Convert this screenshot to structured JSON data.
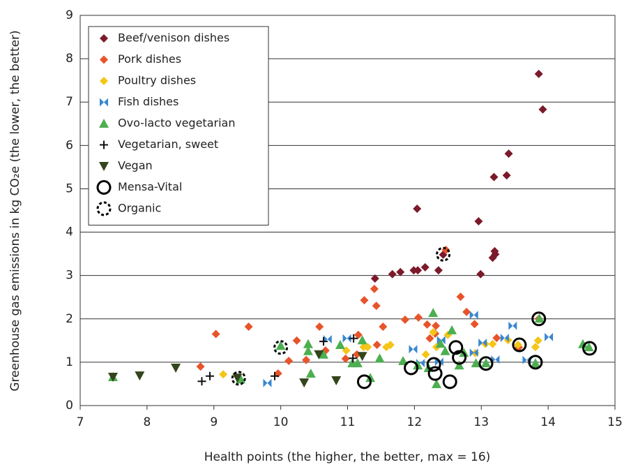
{
  "chart_data": {
    "type": "scatter",
    "xlabel": "Health points (the higher, the better, max = 16)",
    "ylabel": "Greenhouse gas emissions in kg CO₂e (the lower, the better)",
    "xlim": [
      7,
      15
    ],
    "xticks": [
      7,
      8,
      9,
      10,
      11,
      12,
      13,
      14,
      15
    ],
    "ylim": [
      0,
      9
    ],
    "yticks": [
      0,
      1,
      2,
      3,
      4,
      5,
      6,
      7,
      8,
      9
    ],
    "grid": true,
    "legend": "upper left",
    "series": [
      {
        "name": "Beef/venison dishes",
        "color": "#7b1a2a",
        "marker": "diamond",
        "x": [
          13.86,
          13.92,
          13.41,
          13.38,
          13.19,
          12.04,
          12.96,
          12.36,
          12.16,
          12.05,
          11.99,
          11.79,
          11.67,
          11.41,
          12.99,
          13.2,
          13.17,
          13.21,
          12.43
        ],
        "values": [
          7.65,
          6.83,
          5.81,
          5.31,
          5.27,
          4.54,
          4.25,
          3.12,
          3.19,
          3.12,
          3.12,
          3.08,
          3.03,
          2.93,
          3.03,
          3.56,
          3.41,
          3.49,
          3.48
        ]
      },
      {
        "name": "Pork dishes",
        "color": "#e8542a",
        "marker": "diamond",
        "x": [
          12.47,
          8.8,
          9.03,
          9.52,
          9.96,
          10.12,
          10.24,
          10.38,
          10.58,
          10.67,
          10.97,
          11.14,
          11.16,
          11.25,
          11.4,
          11.43,
          11.44,
          11.53,
          11.86,
          12.06,
          12.19,
          12.32,
          12.31,
          12.23,
          12.69,
          12.78,
          12.9,
          13.23,
          13.56,
          13.86
        ],
        "values": [
          3.59,
          0.9,
          1.65,
          1.82,
          0.74,
          1.03,
          1.5,
          1.05,
          1.82,
          1.27,
          1.08,
          1.18,
          1.63,
          2.43,
          2.69,
          2.3,
          1.4,
          1.82,
          1.98,
          2.03,
          1.87,
          1.84,
          1.66,
          1.55,
          2.51,
          2.16,
          1.88,
          1.56,
          1.34,
          2.0
        ]
      },
      {
        "name": "Poultry dishes",
        "color": "#f5c518",
        "marker": "diamond",
        "x": [
          9.14,
          10.98,
          11.24,
          11.3,
          11.58,
          11.64,
          12.17,
          12.28,
          12.33,
          12.5,
          12.91,
          13.06,
          13.17,
          13.4,
          13.81,
          13.85,
          13.55
        ],
        "values": [
          0.72,
          1.27,
          1.35,
          1.35,
          1.35,
          1.4,
          1.18,
          1.69,
          1.35,
          1.63,
          1.21,
          1.42,
          1.42,
          1.51,
          1.35,
          1.5,
          1.4
        ]
      },
      {
        "name": "Fish dishes",
        "color": "#3a87d0",
        "marker": "bowtie",
        "x": [
          9.8,
          10.7,
          10.99,
          11.98,
          12.09,
          12.4,
          12.37,
          12.89,
          13.02,
          13.35,
          13.47,
          13.68,
          14.01,
          13.21,
          12.89
        ],
        "values": [
          0.52,
          1.53,
          1.55,
          1.3,
          0.98,
          1.51,
          1.01,
          2.09,
          1.45,
          1.56,
          1.84,
          1.05,
          1.58,
          1.06,
          1.22
        ]
      },
      {
        "name": "Ovo-lacto vegetarian",
        "color": "#4caf50",
        "marker": "triangle",
        "x": [
          7.49,
          9.4,
          10.0,
          10.41,
          10.41,
          10.45,
          10.64,
          10.89,
          11.07,
          11.15,
          11.22,
          11.34,
          11.48,
          11.83,
          12.05,
          12.21,
          12.28,
          12.33,
          12.39,
          12.46,
          12.56,
          12.67,
          12.74,
          12.92,
          13.07,
          13.81,
          14.52,
          14.61,
          13.87
        ],
        "values": [
          0.66,
          0.61,
          1.38,
          1.42,
          1.26,
          0.74,
          1.18,
          1.4,
          0.98,
          0.98,
          1.51,
          0.64,
          1.09,
          1.03,
          0.93,
          0.87,
          2.14,
          0.5,
          1.43,
          1.26,
          1.74,
          0.93,
          1.22,
          0.98,
          0.98,
          0.98,
          1.42,
          1.35,
          2.01
        ]
      },
      {
        "name": "Vegetarian, sweet",
        "color": "#111111",
        "marker": "plus",
        "x": [
          8.82,
          8.94,
          9.91,
          10.64,
          11.08,
          11.09
        ],
        "values": [
          0.56,
          0.68,
          0.68,
          1.48,
          1.09,
          1.55
        ]
      },
      {
        "name": "Vegan",
        "color": "#33451a",
        "marker": "triangle-down",
        "x": [
          7.49,
          7.89,
          8.43,
          9.35,
          10.35,
          10.83,
          10.57,
          11.22
        ],
        "values": [
          0.66,
          0.69,
          0.87,
          0.64,
          0.53,
          0.58,
          1.18,
          1.14
        ]
      },
      {
        "name": "Mensa-Vital",
        "color": "#000000",
        "marker": "circle",
        "x": [
          11.25,
          11.95,
          12.29,
          12.31,
          12.53,
          12.62,
          12.67,
          13.07,
          13.57,
          13.81,
          13.86,
          14.62
        ],
        "values": [
          0.55,
          0.87,
          0.95,
          0.74,
          0.55,
          1.34,
          1.11,
          0.97,
          1.4,
          1.0,
          2.0,
          1.32
        ]
      },
      {
        "name": "Organic",
        "color": "#000000",
        "marker": "dashed-circle",
        "x": [
          9.37,
          10.0,
          12.43
        ],
        "values": [
          0.63,
          1.34,
          3.49
        ]
      }
    ]
  }
}
